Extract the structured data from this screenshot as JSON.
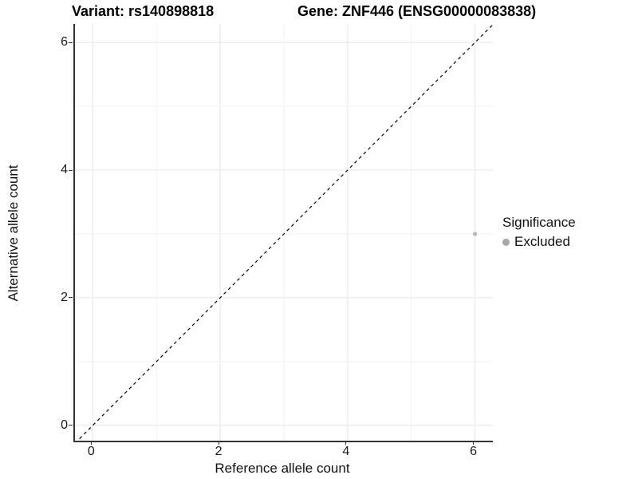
{
  "titles": {
    "variant": "Variant: rs140898818",
    "gene": "Gene: ZNF446 (ENSG00000083838)"
  },
  "chart_data": {
    "type": "scatter",
    "xlabel": "Reference allele count",
    "ylabel": "Alternative allele count",
    "xlim": [
      -0.28,
      6.28
    ],
    "ylim": [
      -0.24,
      6.29
    ],
    "x_ticks": [
      0,
      2,
      4,
      6
    ],
    "y_ticks": [
      0,
      2,
      4,
      6
    ],
    "x_minor_ticks": [
      1,
      3,
      5
    ],
    "y_minor_ticks": [
      1,
      3,
      5
    ],
    "grid": true,
    "points": [
      {
        "x": 6,
        "y": 3,
        "series": "Excluded"
      }
    ],
    "identity_line": {
      "style": "dashed",
      "slope": 1,
      "intercept": 0,
      "color": "#000000"
    },
    "legend": {
      "title": "Significance",
      "position": "right",
      "items": [
        {
          "label": "Excluded",
          "marker": "circle",
          "color": "#a6a6a6"
        }
      ]
    }
  },
  "colors": {
    "point": "#b8b8b8",
    "legend_marker": "#a6a6a6",
    "grid_major": "#e7e7e7",
    "grid_minor": "#f2f2f2",
    "axis_line": "#333333",
    "dashed_line": "#000000"
  }
}
